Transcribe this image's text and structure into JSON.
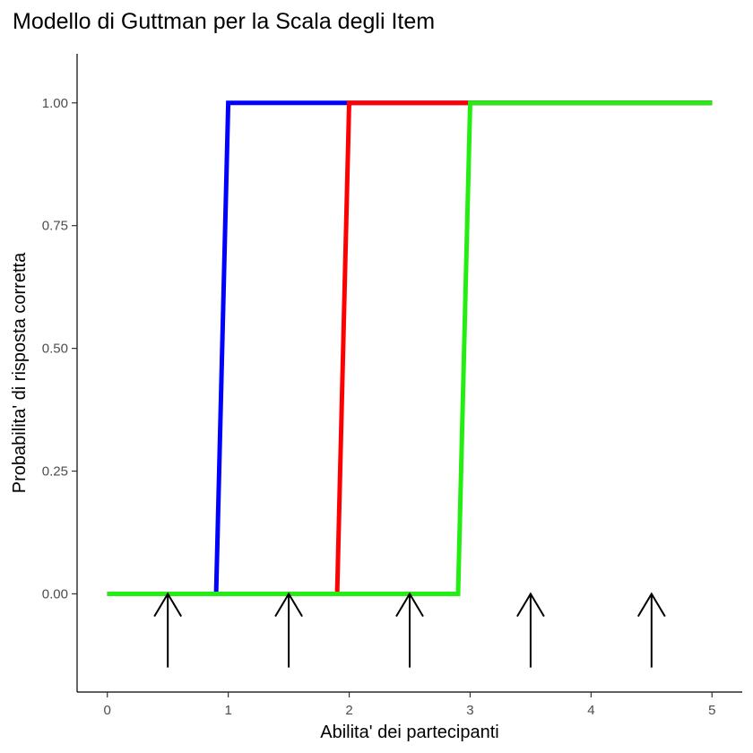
{
  "chart_data": {
    "type": "line",
    "title": "Modello di Guttman per la Scala degli Item",
    "xlabel": "Abilita' dei partecipanti",
    "ylabel": "Probabilita' di risposta corretta",
    "xlim": [
      -0.25,
      5.25
    ],
    "ylim": [
      -0.2,
      1.1
    ],
    "x_ticks": [
      0,
      1,
      2,
      3,
      4,
      5
    ],
    "x_tick_labels": [
      "0",
      "1",
      "2",
      "3",
      "4",
      "5"
    ],
    "y_ticks": [
      0,
      0.25,
      0.5,
      0.75,
      1
    ],
    "y_tick_labels": [
      "0.00",
      "0.25",
      "0.50",
      "0.75",
      "1.00"
    ],
    "grid": false,
    "legend": "none",
    "series": [
      {
        "color": "#0000ff",
        "x": [
          0,
          0.9,
          1,
          5
        ],
        "y": [
          0,
          0,
          1,
          1
        ]
      },
      {
        "color": "#ff0000",
        "x": [
          0,
          1.9,
          2,
          5
        ],
        "y": [
          0,
          0,
          1,
          1
        ]
      },
      {
        "color": "#22ee11",
        "x": [
          0,
          2.9,
          3,
          5
        ],
        "y": [
          0,
          0,
          1,
          1
        ]
      }
    ],
    "annotations": {
      "type": "up-arrows",
      "color": "#000000",
      "x": [
        0.5,
        1.5,
        2.5,
        3.5,
        4.5
      ],
      "y_from": -0.15,
      "y_to": 0
    }
  }
}
